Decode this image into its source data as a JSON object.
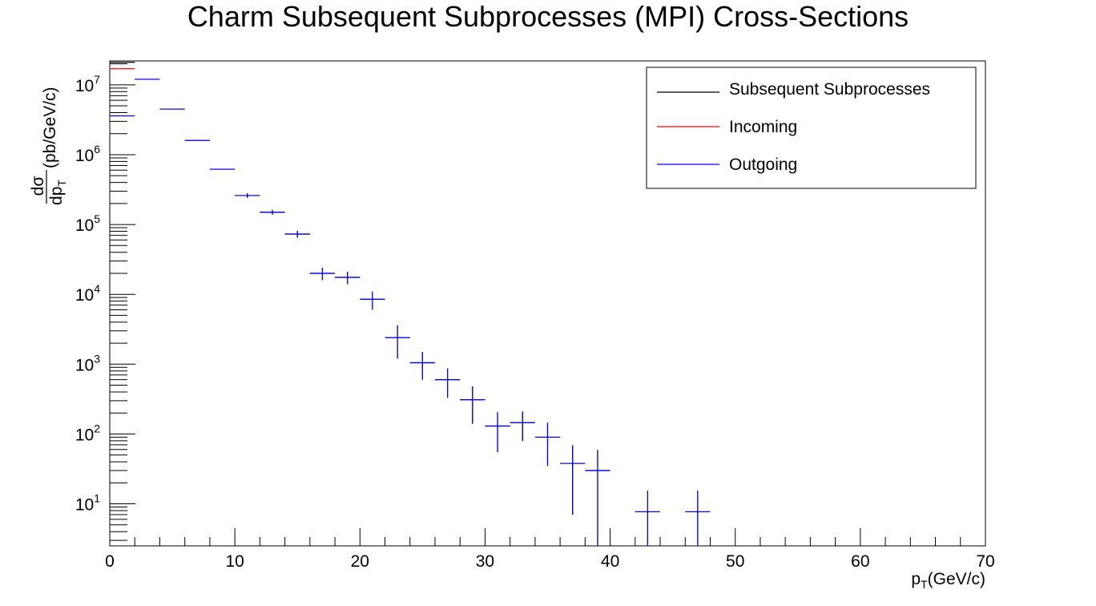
{
  "chart_data": {
    "type": "scatter",
    "title": "Charm Subsequent Subprocesses (MPI) Cross-Sections",
    "xlabel": {
      "main": "p",
      "sub": "T",
      "suffix": "(GeV/c)"
    },
    "ylabel": {
      "numerator": "dσ",
      "denominator_main": "dp",
      "denominator_sub": "T",
      "suffix": "(pb/GeV/c)"
    },
    "xlim": [
      0,
      70
    ],
    "ylim": [
      2.5,
      22000000
    ],
    "yscale": "log",
    "grid": false,
    "legend_position": "top-right",
    "x_ticks": [
      0,
      10,
      20,
      30,
      40,
      50,
      60,
      70
    ],
    "y_ticks": [
      {
        "base": "10",
        "exp": "1",
        "value": 10
      },
      {
        "base": "10",
        "exp": "2",
        "value": 100
      },
      {
        "base": "10",
        "exp": "3",
        "value": 1000
      },
      {
        "base": "10",
        "exp": "4",
        "value": 10000
      },
      {
        "base": "10",
        "exp": "5",
        "value": 100000
      },
      {
        "base": "10",
        "exp": "6",
        "value": 1000000
      },
      {
        "base": "10",
        "exp": "7",
        "value": 10000000
      }
    ],
    "series": [
      {
        "name": "Subsequent Subprocesses",
        "color": "#000000",
        "points": [
          {
            "x": 1,
            "xerr": 1,
            "y": 21000000,
            "yerr": 0
          },
          {
            "x": 3,
            "xerr": 1,
            "y": 12000000,
            "yerr": 0
          },
          {
            "x": 5,
            "xerr": 1,
            "y": 4500000,
            "yerr": 0
          },
          {
            "x": 7,
            "xerr": 1,
            "y": 1600000,
            "yerr": 0
          },
          {
            "x": 9,
            "xerr": 1,
            "y": 620000,
            "yerr": 0
          },
          {
            "x": 11,
            "xerr": 1,
            "y": 260000,
            "yerr": 20000
          },
          {
            "x": 13,
            "xerr": 1,
            "y": 150000,
            "yerr": 12000
          },
          {
            "x": 15,
            "xerr": 1,
            "y": 73000,
            "yerr": 8000
          },
          {
            "x": 17,
            "xerr": 1,
            "y": 20000,
            "yerr": 4000
          },
          {
            "x": 19,
            "xerr": 1,
            "y": 17500,
            "yerr": 3500
          },
          {
            "x": 21,
            "xerr": 1,
            "y": 8500,
            "yerr": 2500
          },
          {
            "x": 23,
            "xerr": 1,
            "y": 2400,
            "yerr": 1200
          },
          {
            "x": 25,
            "xerr": 1,
            "y": 1050,
            "yerr": 450
          },
          {
            "x": 27,
            "xerr": 1,
            "y": 600,
            "yerr": 270
          },
          {
            "x": 29,
            "xerr": 1,
            "y": 310,
            "yerr": 170
          },
          {
            "x": 31,
            "xerr": 1,
            "y": 130,
            "yerr": 75
          },
          {
            "x": 33,
            "xerr": 1,
            "y": 145,
            "yerr": 65
          },
          {
            "x": 35,
            "xerr": 1,
            "y": 90,
            "yerr": 55
          },
          {
            "x": 37,
            "xerr": 1,
            "y": 38,
            "yerr": 31
          },
          {
            "x": 39,
            "xerr": 1,
            "y": 30,
            "yerr": 29
          },
          {
            "x": 43,
            "xerr": 1,
            "y": 7.7,
            "yerr": 7.7
          },
          {
            "x": 47,
            "xerr": 1,
            "y": 7.7,
            "yerr": 7.7
          }
        ]
      },
      {
        "name": "Incoming",
        "color": "#ff0000",
        "points": [
          {
            "x": 1,
            "xerr": 1,
            "y": 17000000,
            "yerr": 0
          }
        ]
      },
      {
        "name": "Outgoing",
        "color": "#0000ff",
        "points": [
          {
            "x": 1,
            "xerr": 1,
            "y": 3600000,
            "yerr": 0
          },
          {
            "x": 3,
            "xerr": 1,
            "y": 12000000,
            "yerr": 0
          },
          {
            "x": 5,
            "xerr": 1,
            "y": 4500000,
            "yerr": 0
          },
          {
            "x": 7,
            "xerr": 1,
            "y": 1600000,
            "yerr": 0
          },
          {
            "x": 9,
            "xerr": 1,
            "y": 620000,
            "yerr": 0
          },
          {
            "x": 11,
            "xerr": 1,
            "y": 260000,
            "yerr": 20000
          },
          {
            "x": 13,
            "xerr": 1,
            "y": 150000,
            "yerr": 12000
          },
          {
            "x": 15,
            "xerr": 1,
            "y": 73000,
            "yerr": 8000
          },
          {
            "x": 17,
            "xerr": 1,
            "y": 20000,
            "yerr": 4000
          },
          {
            "x": 19,
            "xerr": 1,
            "y": 17500,
            "yerr": 3500
          },
          {
            "x": 21,
            "xerr": 1,
            "y": 8500,
            "yerr": 2500
          },
          {
            "x": 23,
            "xerr": 1,
            "y": 2400,
            "yerr": 1200
          },
          {
            "x": 25,
            "xerr": 1,
            "y": 1050,
            "yerr": 450
          },
          {
            "x": 27,
            "xerr": 1,
            "y": 600,
            "yerr": 270
          },
          {
            "x": 29,
            "xerr": 1,
            "y": 310,
            "yerr": 170
          },
          {
            "x": 31,
            "xerr": 1,
            "y": 130,
            "yerr": 75
          },
          {
            "x": 33,
            "xerr": 1,
            "y": 145,
            "yerr": 65
          },
          {
            "x": 35,
            "xerr": 1,
            "y": 90,
            "yerr": 55
          },
          {
            "x": 37,
            "xerr": 1,
            "y": 38,
            "yerr": 31
          },
          {
            "x": 39,
            "xerr": 1,
            "y": 30,
            "yerr": 29
          },
          {
            "x": 43,
            "xerr": 1,
            "y": 7.7,
            "yerr": 7.7
          },
          {
            "x": 47,
            "xerr": 1,
            "y": 7.7,
            "yerr": 7.7
          }
        ]
      }
    ]
  },
  "legend": {
    "entries": [
      {
        "label": "Subsequent Subprocesses",
        "color": "#000000"
      },
      {
        "label": "Incoming",
        "color": "#ff0000"
      },
      {
        "label": "Outgoing",
        "color": "#0000ff"
      }
    ]
  }
}
